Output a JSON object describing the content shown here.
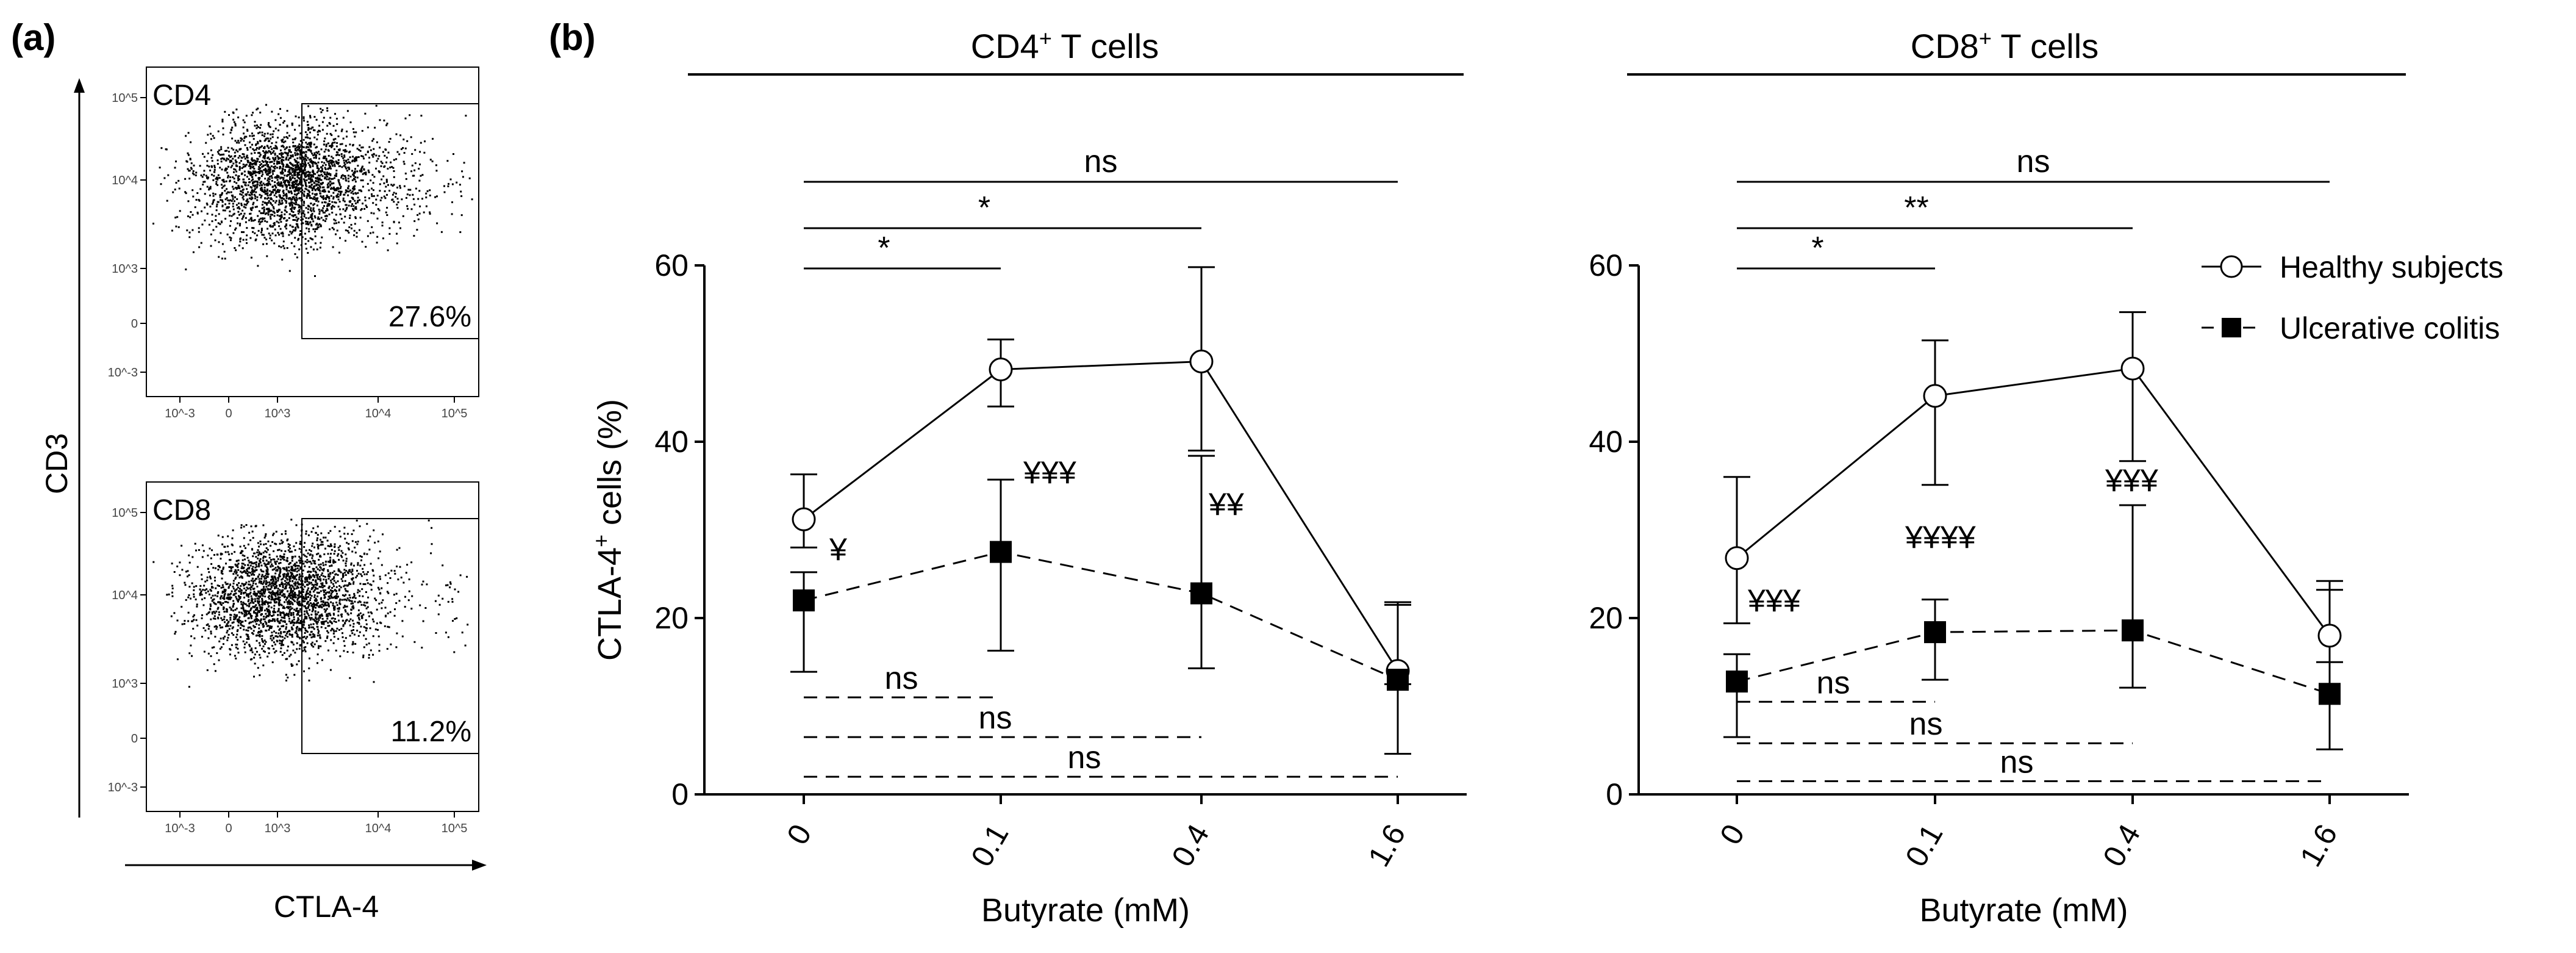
{
  "panels": {
    "a_label": "(a)",
    "b_label": "(b)"
  },
  "flow": {
    "y_axis_label": "CD3",
    "x_axis_label": "CTLA-4",
    "x_tick_labels": [
      "10^-3",
      "0",
      "10^3",
      "10^4",
      "10^5"
    ],
    "y_tick_labels": [
      "10^5",
      "10^4",
      "10^3",
      "0",
      "10^-3"
    ],
    "plots": [
      {
        "label": "CD4",
        "gate_percent": "27.6%"
      },
      {
        "label": "CD8",
        "gate_percent": "11.2%"
      }
    ]
  },
  "legend": {
    "entries": [
      {
        "name": "Healthy subjects",
        "marker": "open-circle",
        "line": "solid"
      },
      {
        "name": "Ulcerative colitis",
        "marker": "filled-square",
        "line": "dashed"
      }
    ]
  },
  "chart_data": [
    {
      "type": "line",
      "title": "CD4+ T cells",
      "title_main": "CD4",
      "title_sup": "+",
      "title_rest": " T cells",
      "xlabel": "Butyrate (mM)",
      "ylabel_main": "CTLA-4",
      "ylabel_sup": "+",
      "ylabel_rest": " cells (%)",
      "categories": [
        "0",
        "0.1",
        "0.4",
        "1.6"
      ],
      "yticks": [
        "0",
        "20",
        "40",
        "60"
      ],
      "ylim": [
        0,
        60
      ],
      "series": [
        {
          "name": "Healthy subjects",
          "values": [
            31.2,
            48.2,
            49.1,
            14.0
          ],
          "err_low": [
            28.0,
            44.0,
            39.0,
            12.5
          ],
          "err_high": [
            36.3,
            51.6,
            59.8,
            21.5
          ]
        },
        {
          "name": "Ulcerative colitis",
          "values": [
            22.0,
            27.5,
            22.8,
            13.0
          ],
          "err_low": [
            13.9,
            16.3,
            14.3,
            4.6
          ],
          "err_high": [
            25.2,
            35.7,
            38.4,
            21.8
          ]
        }
      ],
      "sig_healthy": [
        {
          "from": "0",
          "to": "0.1",
          "label": "*"
        },
        {
          "from": "0",
          "to": "0.4",
          "label": "*"
        },
        {
          "from": "0",
          "to": "1.6",
          "label": "ns"
        }
      ],
      "sig_uc": [
        {
          "from": "0",
          "to": "0.1",
          "label": "ns"
        },
        {
          "from": "0",
          "to": "0.4",
          "label": "ns"
        },
        {
          "from": "0",
          "to": "1.6",
          "label": "ns"
        }
      ],
      "between_group": [
        {
          "x": "0",
          "label": "¥"
        },
        {
          "x": "0.1",
          "label": "¥¥¥"
        },
        {
          "x": "0.4",
          "label": "¥¥"
        }
      ],
      "grid": false
    },
    {
      "type": "line",
      "title": "CD8+ T cells",
      "title_main": "CD8",
      "title_sup": "+",
      "title_rest": " T cells",
      "xlabel": "Butyrate (mM)",
      "categories": [
        "0",
        "0.1",
        "0.4",
        "1.6"
      ],
      "yticks": [
        "0",
        "20",
        "40",
        "60"
      ],
      "ylim": [
        0,
        60
      ],
      "series": [
        {
          "name": "Healthy subjects",
          "values": [
            26.8,
            45.2,
            48.3,
            18.0
          ],
          "err_low": [
            19.4,
            35.1,
            37.8,
            15.0
          ],
          "err_high": [
            36.0,
            51.5,
            54.7,
            24.2
          ]
        },
        {
          "name": "Ulcerative colitis",
          "values": [
            12.8,
            18.4,
            18.6,
            11.4
          ],
          "err_low": [
            6.5,
            13.0,
            12.1,
            5.1
          ],
          "err_high": [
            15.9,
            22.1,
            32.8,
            23.2
          ]
        }
      ],
      "sig_healthy": [
        {
          "from": "0",
          "to": "0.1",
          "label": "*"
        },
        {
          "from": "0",
          "to": "0.4",
          "label": "**"
        },
        {
          "from": "0",
          "to": "1.6",
          "label": "ns"
        }
      ],
      "sig_uc": [
        {
          "from": "0",
          "to": "0.1",
          "label": "ns"
        },
        {
          "from": "0",
          "to": "0.4",
          "label": "ns"
        },
        {
          "from": "0",
          "to": "1.6",
          "label": "ns"
        }
      ],
      "between_group": [
        {
          "x": "0",
          "label": "¥¥¥"
        },
        {
          "x": "0.1",
          "label": "¥¥¥¥"
        },
        {
          "x": "0.4",
          "label": "¥¥¥"
        }
      ],
      "grid": false
    }
  ]
}
